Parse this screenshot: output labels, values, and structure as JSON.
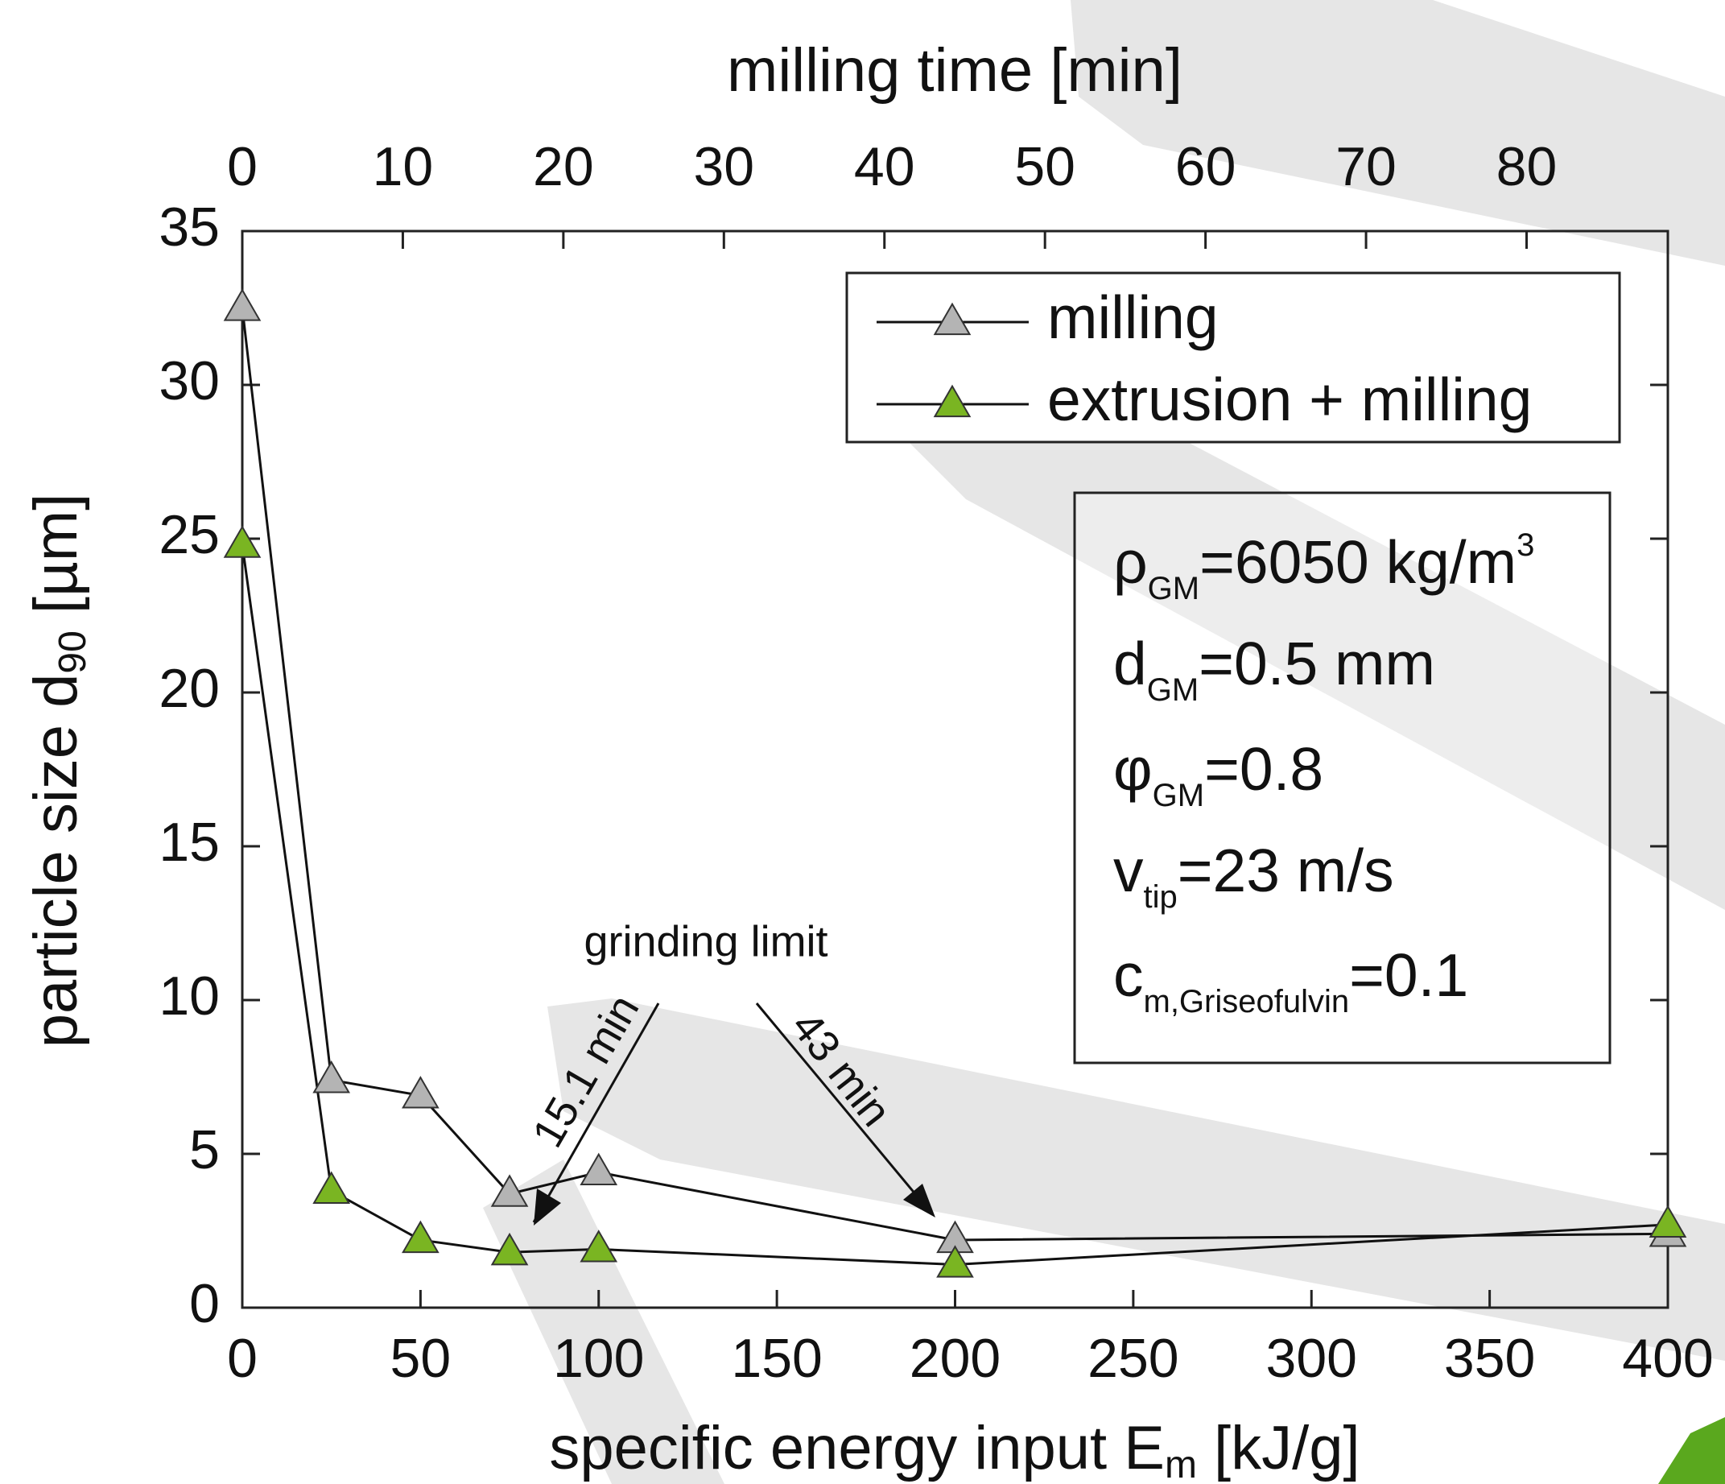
{
  "chart_data": {
    "type": "line",
    "x_label": {
      "text": "specific energy input E",
      "sub": "m",
      "rest": " [kJ/g]"
    },
    "y_label": {
      "text": "particle size d",
      "sub": "90",
      "rest": " [µm]"
    },
    "x2_label": "milling time [min]",
    "x": [
      0,
      25,
      50,
      75,
      100,
      200,
      400
    ],
    "series": [
      {
        "name": "milling",
        "color": "#b4b4b4",
        "values": [
          32.5,
          7.4,
          6.9,
          3.7,
          4.4,
          2.2,
          2.4
        ]
      },
      {
        "name": "extrusion + milling",
        "color": "#7ab522",
        "values": [
          24.8,
          3.8,
          2.2,
          1.8,
          1.9,
          1.4,
          2.7
        ]
      }
    ],
    "xlim": [
      0,
      400
    ],
    "xticks": [
      0,
      50,
      100,
      150,
      200,
      250,
      300,
      350,
      400
    ],
    "ylim": [
      0,
      35
    ],
    "yticks": [
      0,
      5,
      10,
      15,
      20,
      25,
      30,
      35
    ],
    "x2lim": [
      0,
      88.8
    ],
    "x2ticks": [
      0,
      10,
      20,
      30,
      40,
      50,
      60,
      70,
      80
    ],
    "legend": "upper right",
    "parameters": [
      {
        "main": "ρ",
        "sub": "GM",
        "rest": "=6050 kg/m",
        "sup": "3"
      },
      {
        "main": "d",
        "sub": "GM",
        "rest": "=0.5 mm"
      },
      {
        "main": "φ",
        "sub": "GM",
        "rest": "=0.8"
      },
      {
        "main": "v",
        "sub": "tip",
        "rest": "=23 m/s"
      },
      {
        "main": "c",
        "sub": "m,Griseofulvin",
        "rest": "=0.1"
      }
    ],
    "annotations": [
      "grinding limit",
      "15.1 min",
      "43 min"
    ]
  }
}
